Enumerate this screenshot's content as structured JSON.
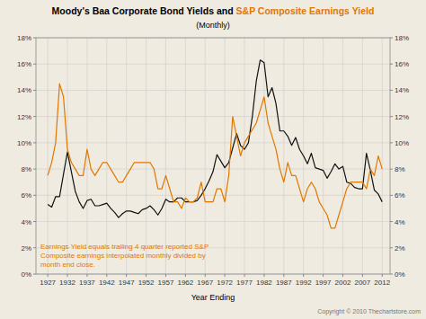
{
  "chart_data": {
    "type": "line",
    "title": [
      "Moody's Baa Corporate Bond Yields and ",
      "S&P Composite Earnings Yield"
    ],
    "subtitle": "(Monthly)",
    "x_label": "Year Ending",
    "annotations": [
      "Earnings Yield equals trailing 4 quarter reported S&P\nComposite earnings interpolated monthly divided by\nmonth end close.",
      "Copyright © 2010 Thechartstore.com"
    ],
    "grid": true,
    "xlim": [
      1924,
      2014
    ],
    "xticks": [
      1927,
      1932,
      1937,
      1942,
      1947,
      1952,
      1957,
      1962,
      1967,
      1972,
      1977,
      1982,
      1987,
      1992,
      1997,
      2002,
      2007,
      2012
    ],
    "ylim": [
      0,
      18
    ],
    "yticks": [
      {
        "value": 0,
        "label": "0%"
      },
      {
        "value": 2,
        "label": "2%"
      },
      {
        "value": 4,
        "label": "4%"
      },
      {
        "value": 6,
        "label": "6%"
      },
      {
        "value": 8,
        "label": "8%"
      },
      {
        "value": 10,
        "label": "10%"
      },
      {
        "value": 12,
        "label": "12%"
      },
      {
        "value": 14,
        "label": "14%"
      },
      {
        "value": 16,
        "label": "16%"
      },
      {
        "value": 18,
        "label": "18%"
      }
    ],
    "y2lim": [
      0,
      18
    ],
    "y2ticks": [
      {
        "value": 0,
        "label": "0%"
      },
      {
        "value": 2,
        "label": "2%"
      },
      {
        "value": 4,
        "label": "4%"
      },
      {
        "value": 6,
        "label": "6%"
      },
      {
        "value": 8,
        "label": "8%"
      },
      {
        "value": 10,
        "label": "10%"
      },
      {
        "value": 12,
        "label": "12%"
      },
      {
        "value": 14,
        "label": "14%"
      },
      {
        "value": 16,
        "label": "16%"
      },
      {
        "value": 18,
        "label": "18%"
      }
    ],
    "x": [
      1927,
      1928,
      1929,
      1930,
      1931,
      1932,
      1933,
      1934,
      1935,
      1936,
      1937,
      1938,
      1939,
      1940,
      1941,
      1942,
      1943,
      1944,
      1945,
      1946,
      1947,
      1948,
      1949,
      1950,
      1951,
      1952,
      1953,
      1954,
      1955,
      1956,
      1957,
      1958,
      1959,
      1960,
      1961,
      1962,
      1963,
      1964,
      1965,
      1966,
      1967,
      1968,
      1969,
      1970,
      1971,
      1972,
      1973,
      1974,
      1975,
      1976,
      1977,
      1978,
      1979,
      1980,
      1981,
      1982,
      1983,
      1984,
      1985,
      1986,
      1987,
      1988,
      1989,
      1990,
      1991,
      1992,
      1993,
      1994,
      1995,
      1996,
      1997,
      1998,
      1999,
      2000,
      2001,
      2002,
      2003,
      2004,
      2005,
      2006,
      2007,
      2008,
      2009,
      2010,
      2011,
      2012
    ],
    "series": [
      {
        "color": "#111111",
        "values": [
          5.3,
          5.1,
          5.9,
          5.9,
          7.6,
          9.3,
          7.8,
          6.3,
          5.5,
          5.0,
          5.6,
          5.7,
          5.2,
          5.2,
          5.3,
          5.4,
          5.0,
          4.7,
          4.3,
          4.6,
          4.8,
          4.8,
          4.7,
          4.6,
          4.9,
          5.0,
          5.2,
          4.9,
          4.5,
          5.0,
          5.7,
          5.5,
          5.5,
          5.8,
          5.8,
          5.5,
          5.5,
          5.5,
          5.6,
          6.0,
          6.5,
          7.1,
          7.8,
          9.1,
          8.6,
          8.1,
          8.5,
          9.6,
          10.7,
          9.8,
          9.5,
          10.0,
          12.0,
          14.7,
          16.3,
          16.1,
          13.5,
          14.2,
          13.0,
          10.9,
          10.9,
          10.5,
          9.8,
          10.4,
          9.5,
          9.0,
          8.4,
          9.2,
          8.1,
          8.0,
          7.9,
          7.3,
          7.8,
          8.4,
          8.0,
          8.2,
          7.0,
          6.9,
          6.6,
          6.5,
          6.5,
          9.2,
          7.9,
          6.4,
          6.1,
          5.5
        ]
      },
      {
        "color": "#e07800",
        "values": [
          7.5,
          8.5,
          10.0,
          14.5,
          13.5,
          9.5,
          8.5,
          8.0,
          7.5,
          7.5,
          9.5,
          8.0,
          7.5,
          8.0,
          8.5,
          8.5,
          8.0,
          7.5,
          7.0,
          7.0,
          7.5,
          8.0,
          8.5,
          8.5,
          8.5,
          8.5,
          8.5,
          8.0,
          6.5,
          6.5,
          7.5,
          6.5,
          5.5,
          5.5,
          5.0,
          5.8,
          5.5,
          5.5,
          5.8,
          7.0,
          5.5,
          5.5,
          5.5,
          6.5,
          6.5,
          5.5,
          7.5,
          12.0,
          10.5,
          9.0,
          10.0,
          10.5,
          11.0,
          11.5,
          12.5,
          13.5,
          11.5,
          10.5,
          9.5,
          8.0,
          7.0,
          8.5,
          7.5,
          7.5,
          6.5,
          5.5,
          6.5,
          7.0,
          6.5,
          5.5,
          5.0,
          4.5,
          3.5,
          3.5,
          4.5,
          5.5,
          6.5,
          7.0,
          7.0,
          7.0,
          7.0,
          6.5,
          8.0,
          7.5,
          9.0,
          8.0
        ]
      }
    ]
  }
}
